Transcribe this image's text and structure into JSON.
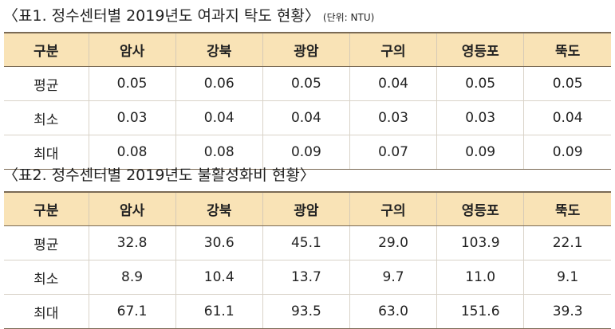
{
  "table1": {
    "caption": "〈표1. 정수센터별 2019년도 여과지 탁도 현황〉",
    "unit": "(단위: NTU)",
    "headers": [
      "구분",
      "암사",
      "강북",
      "광암",
      "구의",
      "영등포",
      "뚝도"
    ],
    "rows": [
      [
        "평균",
        "0.05",
        "0.06",
        "0.05",
        "0.04",
        "0.05",
        "0.05"
      ],
      [
        "최소",
        "0.03",
        "0.04",
        "0.04",
        "0.03",
        "0.03",
        "0.04"
      ],
      [
        "최대",
        "0.08",
        "0.08",
        "0.09",
        "0.07",
        "0.09",
        "0.09"
      ]
    ]
  },
  "table2": {
    "caption": "〈표2. 정수센터별 2019년도 불활성화비 현황〉",
    "headers": [
      "구분",
      "암사",
      "강북",
      "광암",
      "구의",
      "영등포",
      "뚝도"
    ],
    "rows": [
      [
        "평균",
        "32.8",
        "30.6",
        "45.1",
        "29.0",
        "103.9",
        "22.1"
      ],
      [
        "최소",
        "8.9",
        "10.4",
        "13.7",
        "9.7",
        "11.0",
        "9.1"
      ],
      [
        "최대",
        "67.1",
        "61.1",
        "93.5",
        "63.0",
        "151.6",
        "39.3"
      ]
    ]
  }
}
